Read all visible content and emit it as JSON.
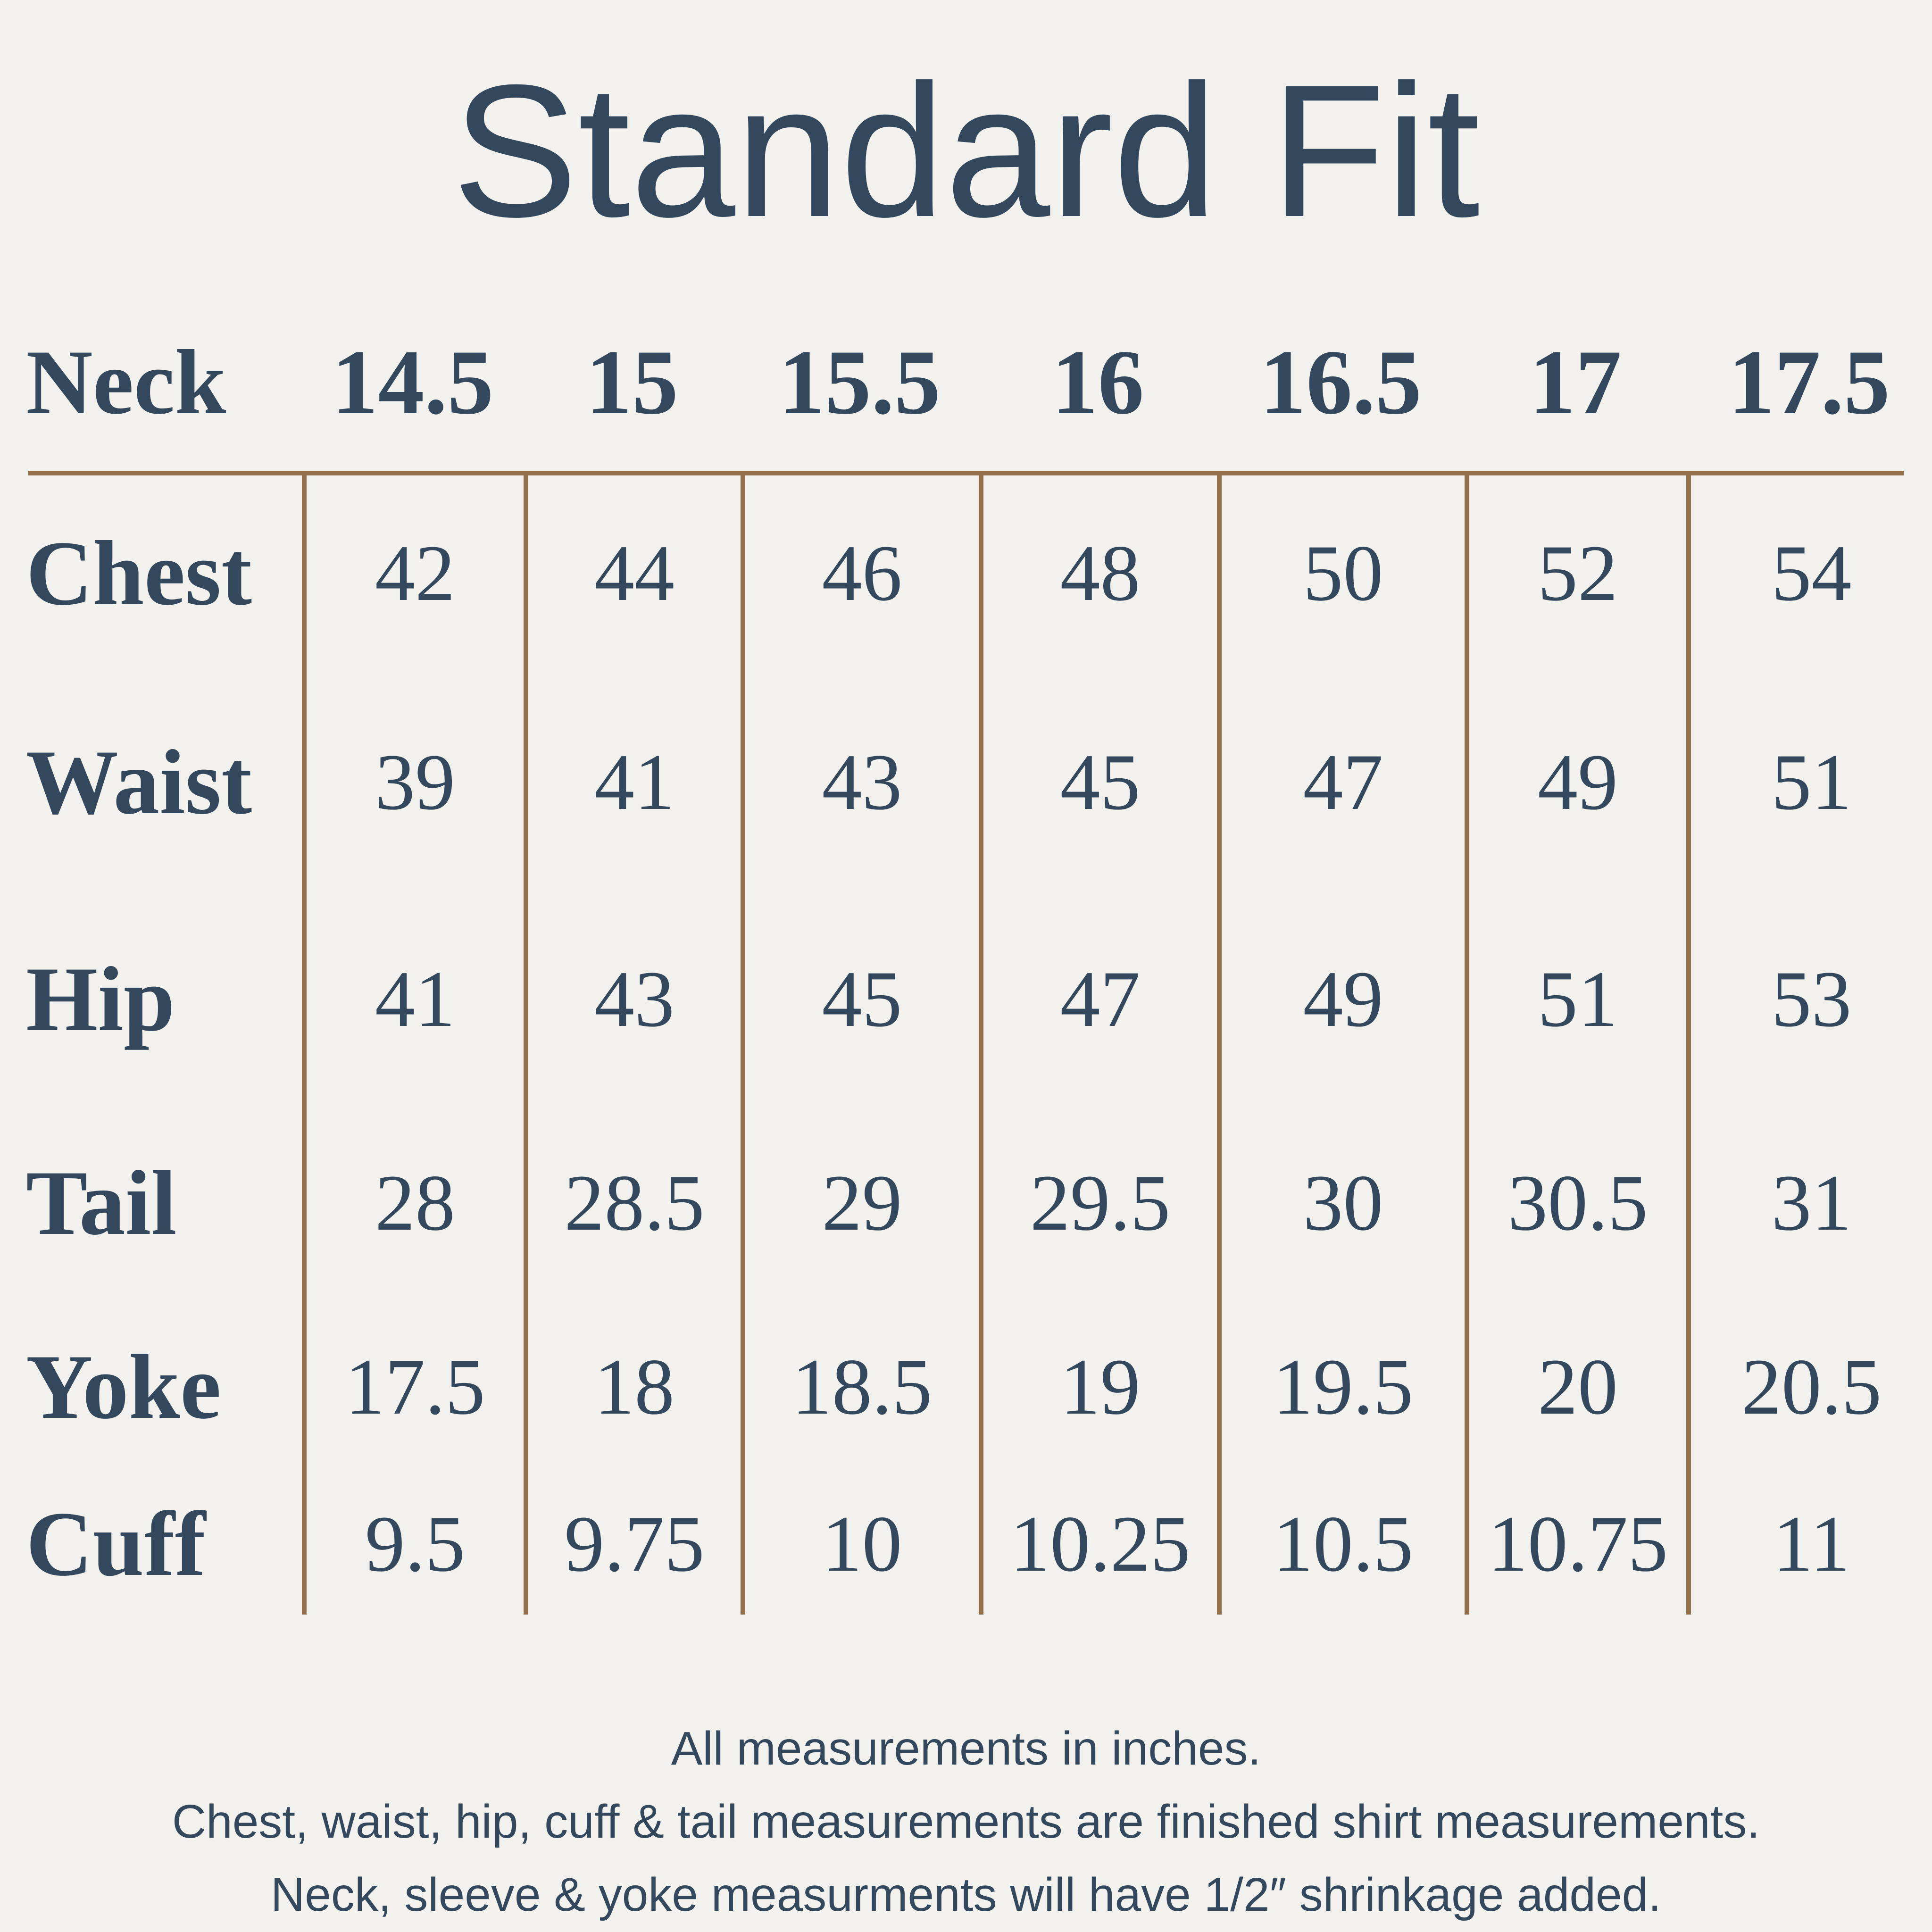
{
  "theme": {
    "background": "#F2F1ED",
    "text_color": "#33485D",
    "line_color": "#94714D"
  },
  "title": "Standard Fit",
  "table": {
    "header": {
      "label": "Neck",
      "values": [
        "14.5",
        "15",
        "15.5",
        "16",
        "16.5",
        "17",
        "17.5"
      ]
    },
    "rows": [
      {
        "label": "Chest",
        "values": [
          "42",
          "44",
          "46",
          "48",
          "50",
          "52",
          "54"
        ]
      },
      {
        "label": "Waist",
        "values": [
          "39",
          "41",
          "43",
          "45",
          "47",
          "49",
          "51"
        ]
      },
      {
        "label": "Hip",
        "values": [
          "41",
          "43",
          "45",
          "47",
          "49",
          "51",
          "53"
        ]
      },
      {
        "label": "Tail",
        "values": [
          "28",
          "28.5",
          "29",
          "29.5",
          "30",
          "30.5",
          "31"
        ]
      },
      {
        "label": "Yoke",
        "values": [
          "17.5",
          "18",
          "18.5",
          "19",
          "19.5",
          "20",
          "20.5"
        ]
      },
      {
        "label": "Cuff",
        "values": [
          "9.5",
          "9.75",
          "10",
          "10.25",
          "10.5",
          "10.75",
          "11"
        ]
      }
    ]
  },
  "footer": {
    "lines": [
      "All measurements in inches.",
      "Chest, waist, hip, cuff & tail measurements are finished shirt measurements.",
      "Neck, sleeve & yoke measurments will have 1/2″ shrinkage added."
    ]
  },
  "chart_data": {
    "type": "table",
    "title": "Standard Fit",
    "row_header_label": "Neck",
    "columns": [
      14.5,
      15,
      15.5,
      16,
      16.5,
      17,
      17.5
    ],
    "rows": [
      {
        "label": "Chest",
        "values": [
          42,
          44,
          46,
          48,
          50,
          52,
          54
        ]
      },
      {
        "label": "Waist",
        "values": [
          39,
          41,
          43,
          45,
          47,
          49,
          51
        ]
      },
      {
        "label": "Hip",
        "values": [
          41,
          43,
          45,
          47,
          49,
          51,
          53
        ]
      },
      {
        "label": "Tail",
        "values": [
          28,
          28.5,
          29,
          29.5,
          30,
          30.5,
          31
        ]
      },
      {
        "label": "Yoke",
        "values": [
          17.5,
          18,
          18.5,
          19,
          19.5,
          20,
          20.5
        ]
      },
      {
        "label": "Cuff",
        "values": [
          9.5,
          9.75,
          10,
          10.25,
          10.5,
          10.75,
          11
        ]
      }
    ],
    "units": "inches",
    "annotations": [
      "All measurements in inches.",
      "Chest, waist, hip, cuff & tail measurements are finished shirt measurements.",
      "Neck, sleeve & yoke measurments will have 1/2″ shrinkage added."
    ],
    "layout": {
      "grid": "brown vertical dividers between value columns, brown horizontal rule under header row",
      "legend": "none"
    }
  }
}
